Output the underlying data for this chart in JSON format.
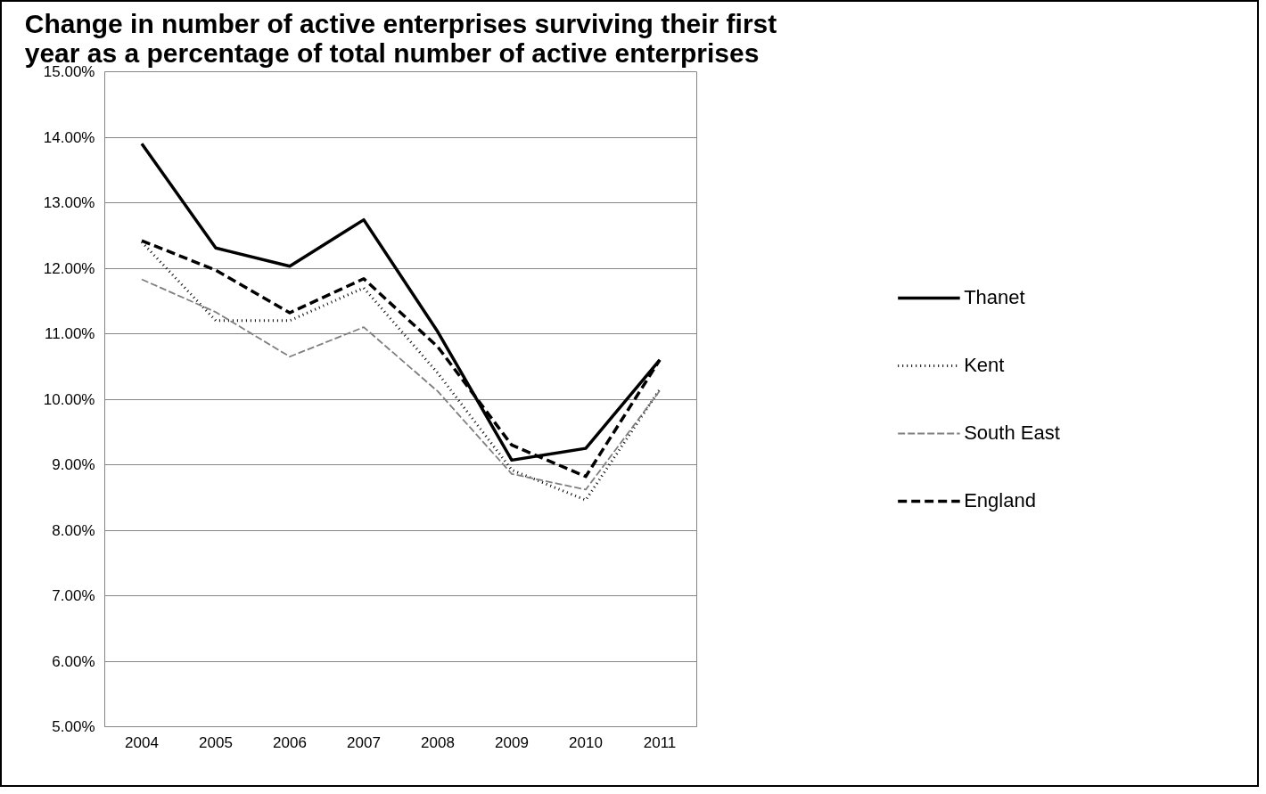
{
  "chart_data": {
    "type": "line",
    "title": "Change in number of active enterprises surviving their first\nyear as a percentage of total number of active enterprises",
    "categories": [
      "2004",
      "2005",
      "2006",
      "2007",
      "2008",
      "2009",
      "2010",
      "2011"
    ],
    "series": [
      {
        "name": "Thanet",
        "color": "#000000",
        "line_style": "solid",
        "values": [
          13.9,
          12.31,
          12.03,
          12.74,
          11.03,
          9.07,
          9.25,
          10.6
        ]
      },
      {
        "name": "Kent",
        "color": "#000000",
        "line_style": "dotted",
        "values": [
          12.4,
          11.2,
          11.2,
          11.7,
          10.4,
          8.92,
          8.46,
          10.15
        ]
      },
      {
        "name": "South East",
        "color": "#7f7f7f",
        "line_style": "dashed",
        "values": [
          11.83,
          11.33,
          10.65,
          11.1,
          10.12,
          8.86,
          8.62,
          10.13
        ]
      },
      {
        "name": "England",
        "color": "#000000",
        "line_style": "dashed",
        "values": [
          12.42,
          11.97,
          11.32,
          11.84,
          10.8,
          9.3,
          8.82,
          10.6
        ]
      }
    ],
    "ylim": [
      5,
      15
    ],
    "yticks": [
      {
        "value": 5,
        "label": "5.00%"
      },
      {
        "value": 6,
        "label": "6.00%"
      },
      {
        "value": 7,
        "label": "7.00%"
      },
      {
        "value": 8,
        "label": "8.00%"
      },
      {
        "value": 9,
        "label": "9.00%"
      },
      {
        "value": 10,
        "label": "10.00%"
      },
      {
        "value": 11,
        "label": "11.00%"
      },
      {
        "value": 12,
        "label": "12.00%"
      },
      {
        "value": 13,
        "label": "13.00%"
      },
      {
        "value": 14,
        "label": "14.00%"
      },
      {
        "value": 15,
        "label": "15.00%"
      }
    ],
    "grid": "y",
    "legend": "right",
    "marker": "none"
  }
}
